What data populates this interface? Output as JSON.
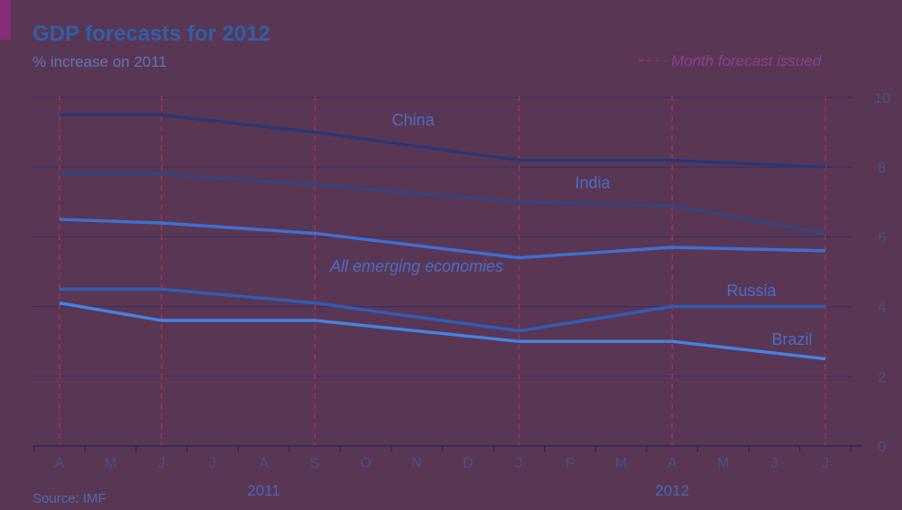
{
  "chart_data": {
    "type": "line",
    "title": "GDP forecasts for 2012",
    "subtitle": "% increase on 2011",
    "legend": {
      "label": "Month forecast issued",
      "placement": "top-right",
      "color": "#a03454"
    },
    "source": "Source: IMF",
    "x_ticks": [
      "A",
      "M",
      "J",
      "J",
      "A",
      "S",
      "O",
      "N",
      "D",
      "J",
      "F",
      "M",
      "A",
      "M",
      "J",
      "J"
    ],
    "x_year_labels": [
      {
        "label": "2011",
        "at": 4
      },
      {
        "label": "2012",
        "at": 12
      }
    ],
    "forecast_months": [
      0,
      2,
      5,
      9,
      12,
      15
    ],
    "ylim": [
      0,
      10
    ],
    "y_ticks": [
      0,
      2,
      4,
      6,
      8,
      10
    ],
    "grid": true,
    "series": [
      {
        "name": "China",
        "color": "#283777",
        "points": [
          [
            0,
            9.5
          ],
          [
            2,
            9.5
          ],
          [
            5,
            9.0
          ],
          [
            9,
            8.2
          ],
          [
            12,
            8.2
          ],
          [
            15,
            8.0
          ]
        ]
      },
      {
        "name": "India",
        "color": "#35447e",
        "points": [
          [
            0,
            7.8
          ],
          [
            2,
            7.8
          ],
          [
            5,
            7.5
          ],
          [
            9,
            7.0
          ],
          [
            12,
            6.9
          ],
          [
            15,
            6.1
          ]
        ]
      },
      {
        "name": "All emerging economies",
        "color": "#3f6fd0",
        "points": [
          [
            0,
            6.5
          ],
          [
            2,
            6.4
          ],
          [
            5,
            6.1
          ],
          [
            9,
            5.4
          ],
          [
            12,
            5.7
          ],
          [
            15,
            5.6
          ]
        ]
      },
      {
        "name": "Russia",
        "color": "#2f5cb5",
        "points": [
          [
            0,
            4.5
          ],
          [
            2,
            4.5
          ],
          [
            5,
            4.1
          ],
          [
            9,
            3.3
          ],
          [
            12,
            4.0
          ],
          [
            15,
            4.0
          ]
        ]
      },
      {
        "name": "Brazil",
        "color": "#4582e0",
        "points": [
          [
            0,
            4.1
          ],
          [
            2,
            3.6
          ],
          [
            5,
            3.6
          ],
          [
            9,
            3.0
          ],
          [
            12,
            3.0
          ],
          [
            15,
            2.5
          ]
        ]
      }
    ]
  }
}
